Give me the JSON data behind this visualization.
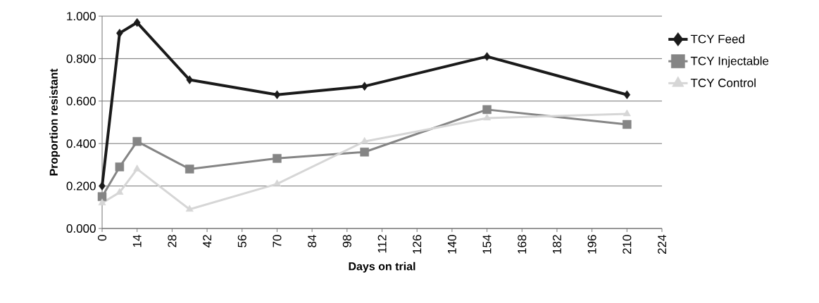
{
  "chart_data": {
    "type": "line",
    "xlabel": "Days on trial",
    "ylabel": "Proportion resistant",
    "x": [
      0,
      7,
      14,
      35,
      70,
      105,
      154,
      210
    ],
    "series": [
      {
        "name": "TCY Feed",
        "color": "#1a1a1a",
        "marker": "diamond",
        "values": [
          0.2,
          0.92,
          0.97,
          0.7,
          0.63,
          0.67,
          0.81,
          0.63
        ]
      },
      {
        "name": "TCY Injectable",
        "color": "#858585",
        "marker": "square",
        "values": [
          0.15,
          0.29,
          0.41,
          0.28,
          0.33,
          0.36,
          0.56,
          0.49
        ]
      },
      {
        "name": "TCY Control",
        "color": "#d6d6d6",
        "marker": "triangle",
        "values": [
          0.12,
          0.17,
          0.28,
          0.09,
          0.21,
          0.41,
          0.52,
          0.54
        ]
      }
    ],
    "xlim": [
      0,
      224
    ],
    "xticks": [
      0,
      14,
      28,
      42,
      56,
      70,
      84,
      98,
      112,
      126,
      140,
      154,
      168,
      182,
      196,
      210,
      224
    ],
    "ylim": [
      0,
      1
    ],
    "yticks": [
      {
        "value": 0,
        "label": "0.000"
      },
      {
        "value": 0.2,
        "label": "0.200"
      },
      {
        "value": 0.4,
        "label": "0.400"
      },
      {
        "value": 0.6,
        "label": "0.600"
      },
      {
        "value": 0.8,
        "label": "0.800"
      },
      {
        "value": 1,
        "label": "1.000"
      }
    ],
    "grid": "y",
    "legend": "right",
    "line_style": "solid"
  }
}
